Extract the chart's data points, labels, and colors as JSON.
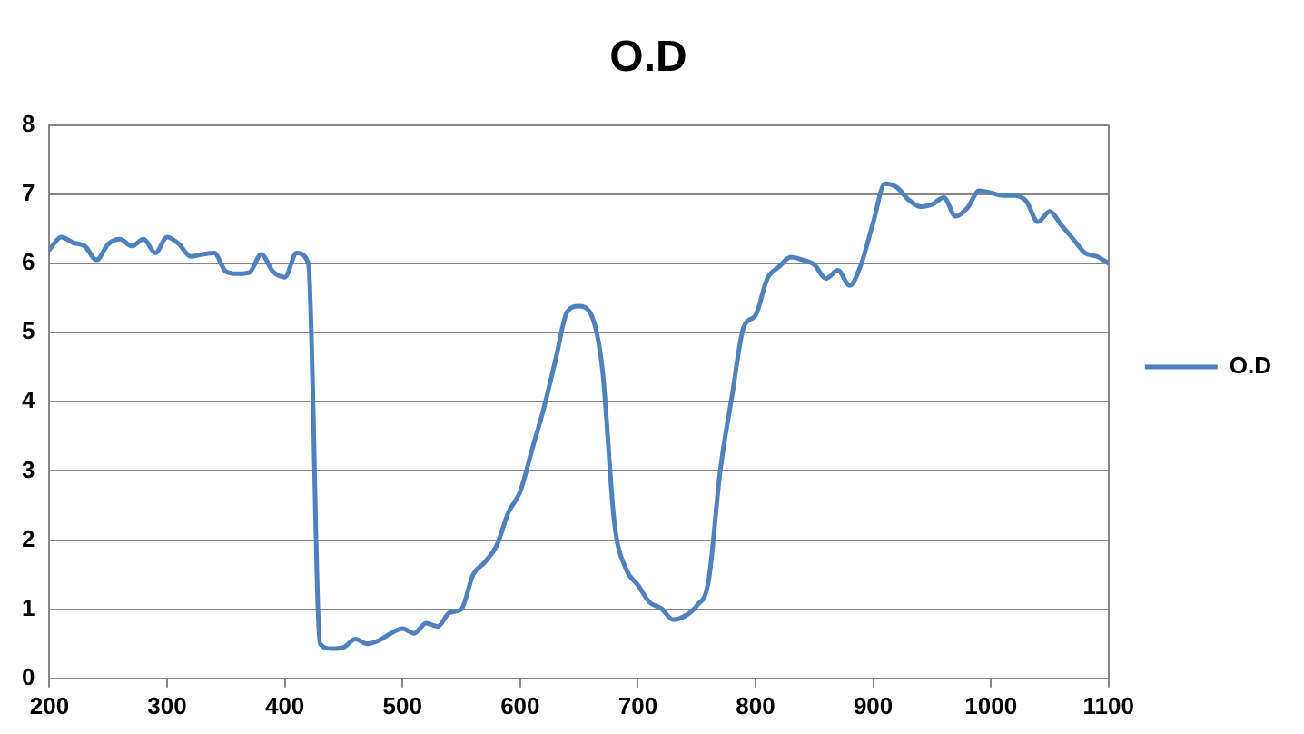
{
  "chart_data": {
    "type": "line",
    "title": "O.D",
    "x": [
      200,
      210,
      220,
      230,
      240,
      250,
      260,
      270,
      280,
      290,
      300,
      310,
      320,
      330,
      340,
      350,
      360,
      370,
      380,
      390,
      400,
      410,
      420,
      430,
      440,
      450,
      460,
      470,
      480,
      490,
      500,
      510,
      520,
      530,
      540,
      550,
      560,
      570,
      580,
      590,
      600,
      610,
      620,
      630,
      640,
      650,
      660,
      670,
      680,
      690,
      700,
      710,
      720,
      730,
      740,
      750,
      760,
      770,
      780,
      790,
      800,
      810,
      820,
      830,
      840,
      850,
      860,
      870,
      880,
      890,
      900,
      910,
      920,
      930,
      940,
      950,
      960,
      970,
      980,
      990,
      1000,
      1010,
      1020,
      1030,
      1040,
      1050,
      1060,
      1070,
      1080,
      1090,
      1100
    ],
    "series": [
      {
        "name": "O.D",
        "color": "#4f81bd",
        "values": [
          6.2,
          6.38,
          6.3,
          6.25,
          6.05,
          6.28,
          6.35,
          6.25,
          6.35,
          6.15,
          6.38,
          6.28,
          6.1,
          6.13,
          6.15,
          5.88,
          5.85,
          5.87,
          6.13,
          5.88,
          5.8,
          6.15,
          6.0,
          0.5,
          0.43,
          0.45,
          0.57,
          0.5,
          0.55,
          0.65,
          0.72,
          0.65,
          0.8,
          0.75,
          0.95,
          1.0,
          1.5,
          1.68,
          1.92,
          2.4,
          2.7,
          3.3,
          3.9,
          4.6,
          5.3,
          5.38,
          5.27,
          4.45,
          2.26,
          1.58,
          1.35,
          1.1,
          1.01,
          0.85,
          0.9,
          1.05,
          1.4,
          3.0,
          4.08,
          5.08,
          5.25,
          5.78,
          5.95,
          6.09,
          6.05,
          5.98,
          5.78,
          5.9,
          5.68,
          6.0,
          6.59,
          7.15,
          7.1,
          6.92,
          6.82,
          6.85,
          6.95,
          6.68,
          6.8,
          7.05,
          7.02,
          6.98,
          6.98,
          6.9,
          6.6,
          6.75,
          6.55,
          6.35,
          6.15,
          6.1,
          6.0
        ]
      }
    ],
    "xlim": [
      200,
      1100
    ],
    "xticks": [
      200,
      300,
      400,
      500,
      600,
      700,
      800,
      900,
      1000,
      1100
    ],
    "ylim": [
      0,
      8
    ],
    "yticks": [
      0,
      1,
      2,
      3,
      4,
      5,
      6,
      7,
      8
    ],
    "grid": "y",
    "legend": "right",
    "marker": "none",
    "line_style": "solid"
  }
}
